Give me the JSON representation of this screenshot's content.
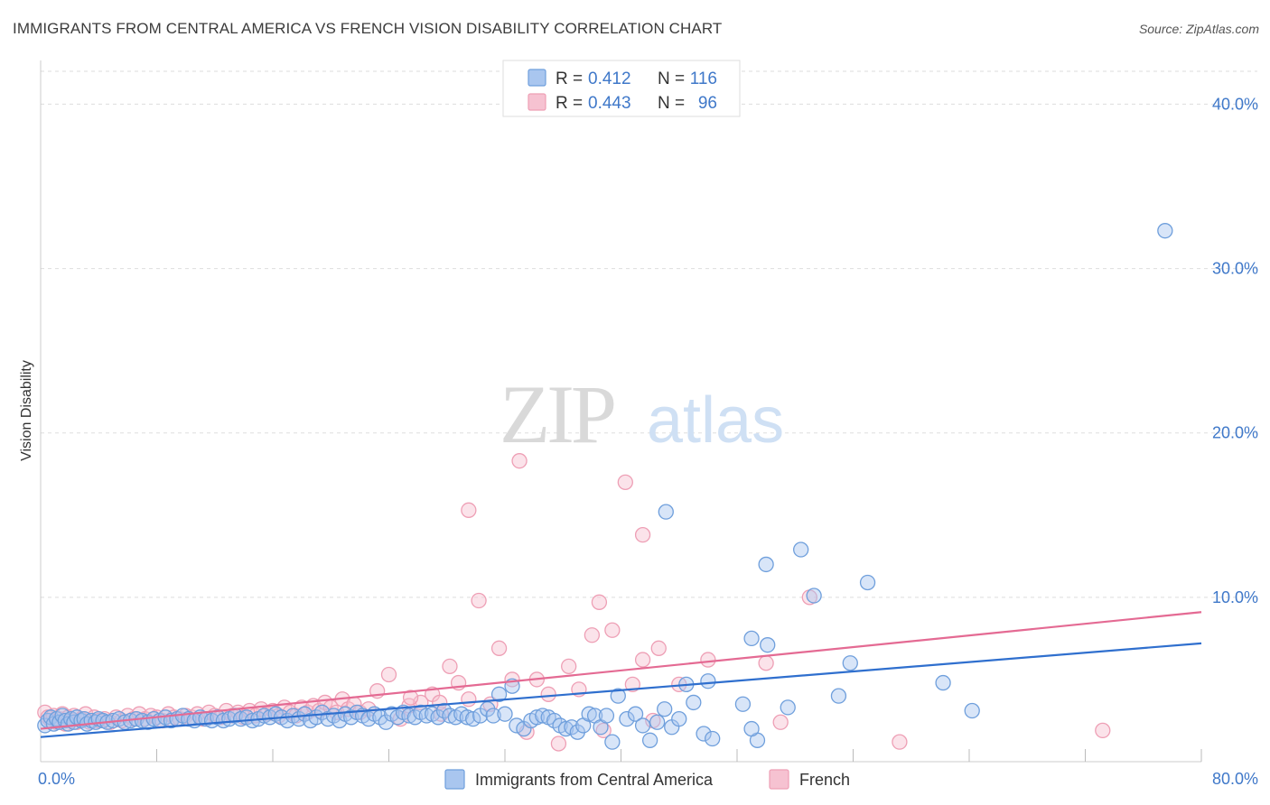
{
  "chart_data": {
    "type": "scatter",
    "title": "IMMIGRANTS FROM CENTRAL AMERICA VS FRENCH VISION DISABILITY CORRELATION CHART",
    "source": "Source: ZipAtlas.com",
    "xlabel": "",
    "ylabel": "Vision Disability",
    "xlim": [
      0,
      80
    ],
    "ylim": [
      0,
      42
    ],
    "x_tick_labels": [
      {
        "value": 0,
        "label": "0.0%"
      },
      {
        "value": 80,
        "label": "80.0%"
      }
    ],
    "y_tick_labels": [
      {
        "value": 10,
        "label": "10.0%"
      },
      {
        "value": 20,
        "label": "20.0%"
      },
      {
        "value": 30,
        "label": "30.0%"
      },
      {
        "value": 40,
        "label": "40.0%"
      }
    ],
    "x_minor_ticks": [
      8,
      16,
      24,
      32,
      40,
      48,
      56,
      64,
      72,
      80
    ],
    "grid": true,
    "watermark": "ZIPatlas",
    "legend_position": "top-center",
    "stats": [
      {
        "r_label": "R =",
        "r_value": "0.412",
        "n_label": "N =",
        "n_value": "116"
      },
      {
        "r_label": "R =",
        "r_value": "0.443",
        "n_label": "N =",
        "n_value": "96"
      }
    ],
    "series": [
      {
        "name": "Immigrants from Central America",
        "color": "#6f9fdc",
        "fill": "#a9c6ef",
        "line_color": "#2f6fce",
        "trend": {
          "x": [
            0,
            80
          ],
          "y": [
            1.5,
            7.2
          ]
        },
        "points": [
          [
            0.3,
            2.2
          ],
          [
            0.5,
            2.5
          ],
          [
            0.7,
            2.7
          ],
          [
            0.9,
            2.3
          ],
          [
            1.1,
            2.6
          ],
          [
            1.3,
            2.4
          ],
          [
            1.5,
            2.8
          ],
          [
            1.7,
            2.5
          ],
          [
            1.9,
            2.3
          ],
          [
            2.1,
            2.6
          ],
          [
            2.3,
            2.4
          ],
          [
            2.5,
            2.7
          ],
          [
            2.8,
            2.5
          ],
          [
            3.0,
            2.6
          ],
          [
            3.2,
            2.3
          ],
          [
            3.5,
            2.5
          ],
          [
            3.8,
            2.4
          ],
          [
            4.0,
            2.6
          ],
          [
            4.3,
            2.5
          ],
          [
            4.6,
            2.4
          ],
          [
            5.0,
            2.5
          ],
          [
            5.4,
            2.6
          ],
          [
            5.8,
            2.4
          ],
          [
            6.2,
            2.5
          ],
          [
            6.6,
            2.6
          ],
          [
            7.0,
            2.5
          ],
          [
            7.4,
            2.4
          ],
          [
            7.8,
            2.6
          ],
          [
            8.2,
            2.5
          ],
          [
            8.6,
            2.7
          ],
          [
            9.0,
            2.5
          ],
          [
            9.4,
            2.6
          ],
          [
            9.8,
            2.8
          ],
          [
            10.2,
            2.6
          ],
          [
            10.6,
            2.5
          ],
          [
            11.0,
            2.7
          ],
          [
            11.4,
            2.6
          ],
          [
            11.8,
            2.5
          ],
          [
            12.2,
            2.7
          ],
          [
            12.6,
            2.5
          ],
          [
            13.0,
            2.6
          ],
          [
            13.4,
            2.8
          ],
          [
            13.8,
            2.6
          ],
          [
            14.2,
            2.7
          ],
          [
            14.6,
            2.5
          ],
          [
            15.0,
            2.6
          ],
          [
            15.4,
            2.8
          ],
          [
            15.8,
            2.7
          ],
          [
            16.2,
            2.9
          ],
          [
            16.6,
            2.7
          ],
          [
            17.0,
            2.5
          ],
          [
            17.4,
            2.8
          ],
          [
            17.8,
            2.6
          ],
          [
            18.2,
            2.9
          ],
          [
            18.6,
            2.5
          ],
          [
            19.0,
            2.7
          ],
          [
            19.4,
            3.0
          ],
          [
            19.8,
            2.6
          ],
          [
            20.2,
            2.8
          ],
          [
            20.6,
            2.5
          ],
          [
            21.0,
            2.9
          ],
          [
            21.4,
            2.7
          ],
          [
            21.8,
            3.0
          ],
          [
            22.2,
            2.8
          ],
          [
            22.6,
            2.6
          ],
          [
            23.0,
            2.9
          ],
          [
            23.4,
            2.7
          ],
          [
            23.8,
            2.4
          ],
          [
            24.2,
            2.9
          ],
          [
            24.6,
            2.7
          ],
          [
            25.0,
            3.0
          ],
          [
            25.4,
            2.8
          ],
          [
            25.8,
            2.7
          ],
          [
            26.2,
            3.0
          ],
          [
            26.6,
            2.8
          ],
          [
            27.0,
            2.9
          ],
          [
            27.4,
            2.7
          ],
          [
            27.8,
            3.1
          ],
          [
            28.2,
            2.8
          ],
          [
            28.6,
            2.7
          ],
          [
            29.0,
            2.9
          ],
          [
            29.4,
            2.7
          ],
          [
            29.8,
            2.6
          ],
          [
            30.3,
            2.8
          ],
          [
            30.8,
            3.2
          ],
          [
            31.2,
            2.8
          ],
          [
            31.6,
            4.1
          ],
          [
            32.0,
            2.9
          ],
          [
            32.5,
            4.6
          ],
          [
            32.8,
            2.2
          ],
          [
            33.3,
            2.0
          ],
          [
            33.8,
            2.5
          ],
          [
            34.2,
            2.7
          ],
          [
            34.6,
            2.8
          ],
          [
            35.0,
            2.7
          ],
          [
            35.4,
            2.5
          ],
          [
            35.8,
            2.2
          ],
          [
            36.2,
            2.0
          ],
          [
            36.6,
            2.1
          ],
          [
            37.0,
            1.8
          ],
          [
            37.4,
            2.2
          ],
          [
            37.8,
            2.9
          ],
          [
            38.2,
            2.8
          ],
          [
            38.6,
            2.1
          ],
          [
            39.0,
            2.8
          ],
          [
            39.4,
            1.2
          ],
          [
            39.8,
            4.0
          ],
          [
            40.4,
            2.6
          ],
          [
            41.0,
            2.9
          ],
          [
            41.5,
            2.2
          ],
          [
            42.0,
            1.3
          ],
          [
            42.5,
            2.4
          ],
          [
            43.0,
            3.2
          ],
          [
            43.5,
            2.1
          ],
          [
            44.0,
            2.6
          ],
          [
            44.5,
            4.7
          ],
          [
            45.0,
            3.6
          ],
          [
            45.7,
            1.7
          ],
          [
            46.3,
            1.4
          ],
          [
            48.4,
            3.5
          ],
          [
            49.0,
            7.5
          ],
          [
            50.1,
            7.1
          ],
          [
            51.5,
            3.3
          ],
          [
            52.4,
            12.9
          ],
          [
            55.0,
            4.0
          ],
          [
            55.8,
            6.0
          ],
          [
            62.2,
            4.8
          ],
          [
            64.2,
            3.1
          ],
          [
            77.5,
            32.3
          ],
          [
            49.4,
            1.3
          ],
          [
            49.0,
            2.0
          ],
          [
            46.0,
            4.9
          ],
          [
            57.0,
            10.9
          ],
          [
            53.3,
            10.1
          ],
          [
            50.0,
            12.0
          ],
          [
            43.1,
            15.2
          ]
        ]
      },
      {
        "name": "French",
        "color": "#ee9fb5",
        "fill": "#f6c2d1",
        "line_color": "#e46a93",
        "trend": {
          "x": [
            0,
            80
          ],
          "y": [
            2.0,
            9.1
          ]
        },
        "points": [
          [
            0.3,
            3.0
          ],
          [
            0.5,
            2.7
          ],
          [
            0.7,
            2.5
          ],
          [
            0.9,
            2.8
          ],
          [
            1.1,
            2.4
          ],
          [
            1.3,
            2.6
          ],
          [
            1.5,
            2.9
          ],
          [
            1.7,
            2.3
          ],
          [
            1.9,
            2.7
          ],
          [
            2.1,
            2.5
          ],
          [
            2.3,
            2.8
          ],
          [
            2.5,
            2.4
          ],
          [
            2.8,
            2.6
          ],
          [
            3.1,
            2.9
          ],
          [
            3.4,
            2.4
          ],
          [
            3.7,
            2.7
          ],
          [
            4.0,
            2.5
          ],
          [
            4.4,
            2.6
          ],
          [
            4.8,
            2.4
          ],
          [
            5.2,
            2.7
          ],
          [
            5.6,
            2.5
          ],
          [
            6.0,
            2.8
          ],
          [
            6.4,
            2.6
          ],
          [
            6.8,
            2.9
          ],
          [
            7.2,
            2.6
          ],
          [
            7.6,
            2.8
          ],
          [
            8.0,
            2.7
          ],
          [
            8.4,
            2.5
          ],
          [
            8.8,
            2.9
          ],
          [
            9.2,
            2.7
          ],
          [
            9.6,
            2.6
          ],
          [
            10.0,
            2.8
          ],
          [
            10.4,
            2.7
          ],
          [
            10.8,
            2.9
          ],
          [
            11.2,
            2.6
          ],
          [
            11.6,
            3.0
          ],
          [
            12.0,
            2.8
          ],
          [
            12.4,
            2.7
          ],
          [
            12.8,
            3.1
          ],
          [
            13.2,
            2.8
          ],
          [
            13.6,
            3.0
          ],
          [
            14.0,
            2.7
          ],
          [
            14.4,
            3.1
          ],
          [
            14.8,
            2.8
          ],
          [
            15.2,
            3.2
          ],
          [
            15.6,
            2.9
          ],
          [
            16.0,
            3.1
          ],
          [
            16.4,
            2.8
          ],
          [
            16.8,
            3.3
          ],
          [
            17.2,
            3.0
          ],
          [
            17.6,
            2.8
          ],
          [
            18.0,
            3.3
          ],
          [
            18.4,
            3.0
          ],
          [
            18.8,
            3.4
          ],
          [
            19.2,
            3.1
          ],
          [
            19.6,
            3.6
          ],
          [
            20.0,
            3.3
          ],
          [
            20.4,
            3.0
          ],
          [
            20.8,
            3.8
          ],
          [
            21.2,
            3.2
          ],
          [
            21.6,
            3.5
          ],
          [
            22.0,
            3.0
          ],
          [
            22.6,
            3.2
          ],
          [
            23.2,
            4.3
          ],
          [
            24.0,
            5.3
          ],
          [
            24.8,
            2.6
          ],
          [
            25.4,
            3.4
          ],
          [
            26.2,
            3.6
          ],
          [
            27.0,
            4.1
          ],
          [
            27.6,
            2.9
          ],
          [
            28.2,
            5.8
          ],
          [
            28.8,
            4.8
          ],
          [
            29.5,
            3.8
          ],
          [
            30.2,
            9.8
          ],
          [
            31.0,
            3.5
          ],
          [
            31.6,
            6.9
          ],
          [
            32.5,
            5.0
          ],
          [
            33.5,
            1.8
          ],
          [
            34.2,
            5.0
          ],
          [
            35.0,
            4.1
          ],
          [
            35.7,
            1.1
          ],
          [
            36.4,
            5.8
          ],
          [
            37.1,
            4.4
          ],
          [
            38.0,
            7.7
          ],
          [
            38.8,
            1.9
          ],
          [
            39.4,
            8.0
          ],
          [
            40.3,
            17.0
          ],
          [
            40.8,
            4.7
          ],
          [
            42.2,
            2.5
          ],
          [
            44.0,
            4.7
          ],
          [
            46.0,
            6.2
          ],
          [
            50.0,
            6.0
          ],
          [
            51.0,
            2.4
          ],
          [
            53.0,
            10.0
          ],
          [
            59.2,
            1.2
          ],
          [
            73.2,
            1.9
          ]
        ]
      }
    ],
    "extra_pink_points": [
      [
        33.0,
        18.3
      ],
      [
        29.5,
        15.3
      ],
      [
        41.5,
        13.8
      ],
      [
        42.6,
        6.9
      ],
      [
        41.5,
        6.2
      ],
      [
        38.5,
        9.7
      ],
      [
        25.5,
        3.9
      ],
      [
        27.5,
        3.6
      ]
    ]
  },
  "legend": {
    "items": [
      {
        "label": "Immigrants from Central America"
      },
      {
        "label": "French"
      }
    ]
  }
}
